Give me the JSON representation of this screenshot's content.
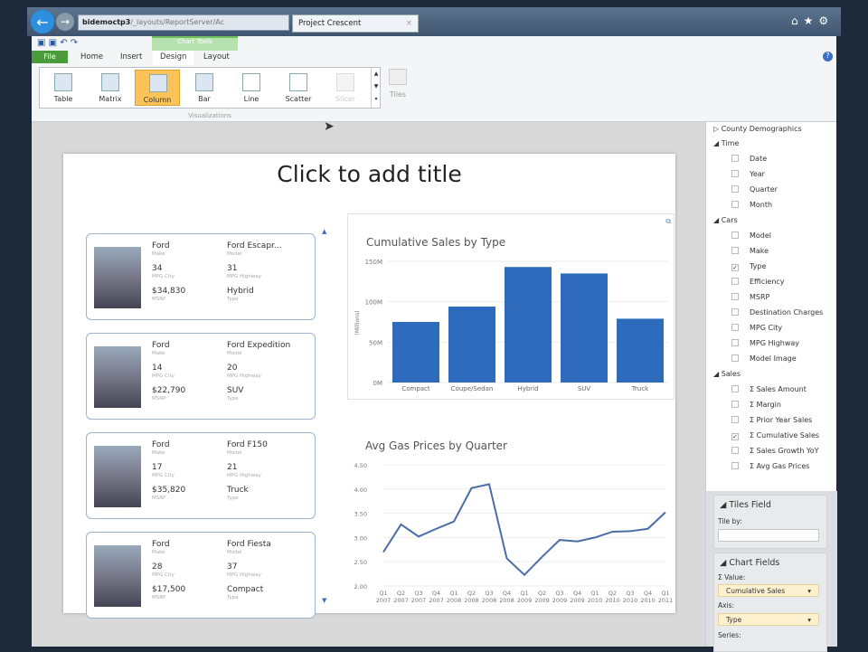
{
  "browser": {
    "url_host": "bidemoctp3",
    "url_rest": "/_layouts/ReportServer/Ac",
    "tab_title": "Project Crescent"
  },
  "ribbon": {
    "context_group": "Chart Tools",
    "tabs": [
      "File",
      "Home",
      "Insert",
      "Design",
      "Layout"
    ],
    "active_tab": "Design",
    "gallery": [
      "Table",
      "Matrix",
      "Column",
      "Bar",
      "Line",
      "Scatter",
      "Slicer"
    ],
    "selected": "Column",
    "group_label": "Visualizations",
    "tiles": "Tiles"
  },
  "slide": {
    "title": "Click to add title"
  },
  "cards": [
    {
      "make": "Ford",
      "model": "Ford Escapr...",
      "mpg_city": "34",
      "mpg_hwy": "31",
      "msrp": "$34,830",
      "type": "Hybrid"
    },
    {
      "make": "Ford",
      "model": "Ford Expedition",
      "mpg_city": "14",
      "mpg_hwy": "20",
      "msrp": "$22,790",
      "type": "SUV"
    },
    {
      "make": "Ford",
      "model": "Ford F150",
      "mpg_city": "17",
      "mpg_hwy": "21",
      "msrp": "$35,820",
      "type": "Truck"
    },
    {
      "make": "Ford",
      "model": "Ford Fiesta",
      "mpg_city": "28",
      "mpg_hwy": "37",
      "msrp": "$17,500",
      "type": "Compact"
    }
  ],
  "card_labels": {
    "make": "Make",
    "model": "Model",
    "mpg_city": "MPG City",
    "mpg_hwy": "MPG Highway",
    "msrp": "MSRP",
    "type": "Type"
  },
  "chart_data": [
    {
      "type": "bar",
      "title": "Cumulative Sales by Type",
      "ylabel": "(Millions)",
      "categories": [
        "Compact",
        "Coupe/Sedan",
        "Hybrid",
        "SUV",
        "Truck"
      ],
      "values": [
        75,
        94,
        143,
        135,
        79
      ],
      "ylim": [
        0,
        150
      ],
      "yticks": [
        "0M",
        "50M",
        "100M",
        "150M"
      ],
      "color": "#2e6bbd",
      "grid": true
    },
    {
      "type": "line",
      "title": "Avg Gas Prices by Quarter",
      "categories": [
        "Q1 2007",
        "Q2 2007",
        "Q3 2007",
        "Q4 2007",
        "Q1 2008",
        "Q2 2008",
        "Q3 2008",
        "Q4 2008",
        "Q1 2009",
        "Q2 2009",
        "Q3 2009",
        "Q4 2009",
        "Q1 2010",
        "Q2 2010",
        "Q3 2010",
        "Q4 2010",
        "Q1 2011"
      ],
      "values": [
        2.7,
        3.27,
        3.02,
        3.18,
        3.33,
        4.02,
        4.1,
        2.57,
        2.23,
        2.6,
        2.95,
        2.92,
        3.0,
        3.12,
        3.13,
        3.18,
        3.52
      ],
      "ylim": [
        2.0,
        4.5
      ],
      "yticks": [
        "2.00",
        "2.50",
        "3.00",
        "3.50",
        "4.00",
        "4.50"
      ],
      "color": "#4a6da8",
      "grid": true
    }
  ],
  "fields": {
    "table": "County Demographics",
    "groups": [
      {
        "name": "Time",
        "items": [
          {
            "l": "Date"
          },
          {
            "l": "Year"
          },
          {
            "l": "Quarter"
          },
          {
            "l": "Month"
          }
        ]
      },
      {
        "name": "Cars",
        "items": [
          {
            "l": "Model"
          },
          {
            "l": "Make"
          },
          {
            "l": "Type",
            "c": true
          },
          {
            "l": "Efficiency"
          },
          {
            "l": "MSRP"
          },
          {
            "l": "Destination Charges"
          },
          {
            "l": "MPG City"
          },
          {
            "l": "MPG Highway"
          },
          {
            "l": "Model Image"
          }
        ]
      },
      {
        "name": "Sales",
        "items": [
          {
            "l": "Σ Sales Amount"
          },
          {
            "l": "Σ Margin"
          },
          {
            "l": "Σ Prior Year Sales"
          },
          {
            "l": "Σ Cumulative Sales",
            "c": true
          },
          {
            "l": "Σ Sales Growth YoY"
          },
          {
            "l": "Σ Avg Gas Prices"
          }
        ]
      }
    ]
  },
  "tiles_field": {
    "header": "Tiles Field",
    "tile_by": "Tile by:",
    "value": ""
  },
  "chart_fields": {
    "header": "Chart Fields",
    "value_label": "Value:",
    "value": "Cumulative Sales",
    "axis_label": "Axis:",
    "axis": "Type",
    "series_label": "Series:"
  }
}
